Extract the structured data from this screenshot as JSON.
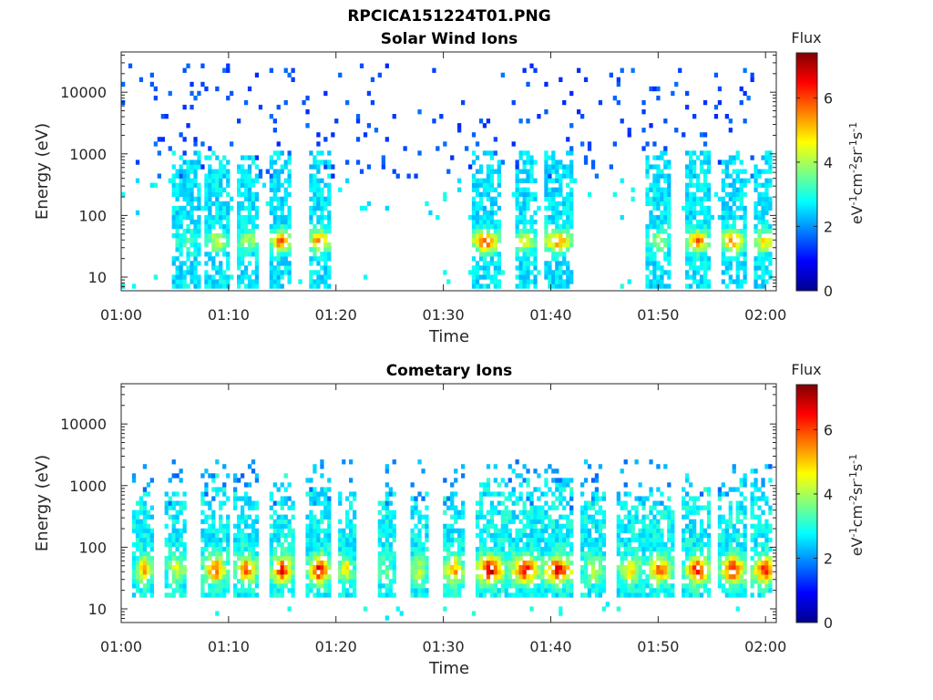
{
  "figure": {
    "filename": "RPCICA151224T01.PNG"
  },
  "colorbar_ticks": [
    "0",
    "2",
    "4",
    "6"
  ],
  "chart_data": [
    {
      "type": "heatmap",
      "title": "Solar Wind Ions",
      "xlabel": "Time",
      "ylabel": "Energy (eV)",
      "yscale": "log",
      "ylim": [
        6,
        45000
      ],
      "xlim": [
        "01:00",
        "02:01"
      ],
      "xticks": [
        "01:00",
        "01:10",
        "01:20",
        "01:30",
        "01:40",
        "01:50",
        "02:00"
      ],
      "yticks": [
        "10",
        "100",
        "1000",
        "10000"
      ],
      "colorbar": {
        "label": "Flux",
        "units_label": "eV-1cm-2sr-1s-1",
        "range": [
          0,
          7.4
        ],
        "ticks": [
          0,
          2,
          4,
          6
        ],
        "colormap": "jet"
      },
      "grid": false,
      "bursts": [
        {
          "t": 6,
          "w": 1.2,
          "peak": 3.4
        },
        {
          "t": 8.8,
          "w": 1.0,
          "peak": 4.5
        },
        {
          "t": 11.6,
          "w": 1.0,
          "peak": 4.3
        },
        {
          "t": 14.7,
          "w": 0.9,
          "peak": 6.1
        },
        {
          "t": 18.3,
          "w": 1.0,
          "peak": 6.0
        },
        {
          "t": 33.8,
          "w": 1.3,
          "peak": 6.4
        },
        {
          "t": 37.5,
          "w": 1.0,
          "peak": 4.8
        },
        {
          "t": 40.5,
          "w": 1.3,
          "peak": 5.8
        },
        {
          "t": 49.8,
          "w": 1.0,
          "peak": 4.2
        },
        {
          "t": 53.5,
          "w": 1.0,
          "peak": 6.0
        },
        {
          "t": 56.8,
          "w": 1.1,
          "peak": 6.1
        },
        {
          "t": 59.7,
          "w": 1.0,
          "peak": 5.3
        }
      ]
    },
    {
      "type": "heatmap",
      "title": "Cometary Ions",
      "xlabel": "Time",
      "ylabel": "Energy (eV)",
      "yscale": "log",
      "ylim": [
        6,
        45000
      ],
      "xlim": [
        "01:00",
        "02:01"
      ],
      "xticks": [
        "01:00",
        "01:10",
        "01:20",
        "01:30",
        "01:40",
        "01:50",
        "02:00"
      ],
      "yticks": [
        "10",
        "100",
        "1000",
        "10000"
      ],
      "colorbar": {
        "label": "Flux",
        "units_label": "eV-1cm-2sr-1s-1",
        "range": [
          0,
          7.4
        ],
        "ticks": [
          0,
          2,
          4,
          6
        ],
        "colormap": "jet"
      },
      "grid": false,
      "bursts": [
        {
          "t": 2,
          "w": 0.9,
          "peak": 5.4
        },
        {
          "t": 5,
          "w": 0.9,
          "peak": 4.6
        },
        {
          "t": 8.6,
          "w": 1.1,
          "peak": 6.2
        },
        {
          "t": 11.5,
          "w": 1.0,
          "peak": 6.0
        },
        {
          "t": 14.8,
          "w": 1.0,
          "peak": 6.8
        },
        {
          "t": 18.3,
          "w": 1.1,
          "peak": 7.0
        },
        {
          "t": 20.8,
          "w": 0.7,
          "peak": 5.0
        },
        {
          "t": 24.5,
          "w": 0.8,
          "peak": 3.8
        },
        {
          "t": 27.5,
          "w": 0.8,
          "peak": 4.4
        },
        {
          "t": 30.8,
          "w": 1.0,
          "peak": 5.6
        },
        {
          "t": 34.2,
          "w": 1.4,
          "peak": 7.2
        },
        {
          "t": 37.5,
          "w": 1.4,
          "peak": 6.8
        },
        {
          "t": 40.5,
          "w": 1.4,
          "peak": 7.0
        },
        {
          "t": 43.8,
          "w": 1.0,
          "peak": 4.3
        },
        {
          "t": 47.2,
          "w": 1.2,
          "peak": 5.0
        },
        {
          "t": 50,
          "w": 1.2,
          "peak": 6.0
        },
        {
          "t": 53.5,
          "w": 1.2,
          "peak": 6.9
        },
        {
          "t": 56.8,
          "w": 1.2,
          "peak": 6.9
        },
        {
          "t": 59.8,
          "w": 1.2,
          "peak": 6.6
        }
      ]
    }
  ]
}
